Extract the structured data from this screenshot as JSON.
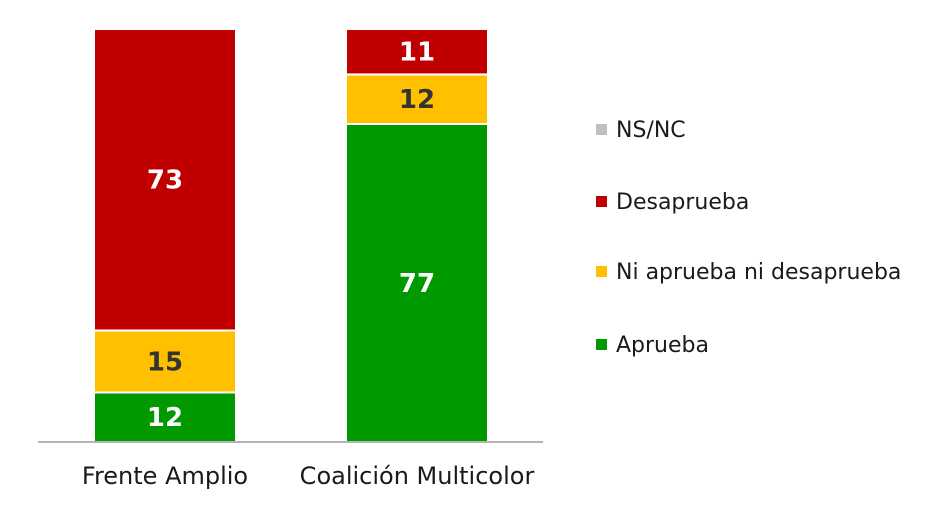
{
  "chart_data": {
    "type": "bar",
    "stacked": true,
    "categories": [
      "Frente Amplio",
      "Coalición Multicolor"
    ],
    "series": [
      {
        "name": "Aprueba",
        "color": "#009900",
        "values": [
          12,
          77
        ]
      },
      {
        "name": "Ni aprueba ni desaprueba",
        "color": "#FFC000",
        "values": [
          15,
          12
        ]
      },
      {
        "name": "Desaprueba",
        "color": "#C00000",
        "values": [
          73,
          11
        ]
      },
      {
        "name": "NS/NC",
        "color": "#BFBFBF",
        "values": [
          0,
          0
        ]
      }
    ],
    "label_colors": {
      "Aprueba": "#FFFFFF",
      "Ni aprueba ni desaprueba": "#333333",
      "Desaprueba": "#FFFFFF"
    },
    "ylim": [
      0,
      100
    ],
    "legend_position": "right",
    "grid": false
  }
}
